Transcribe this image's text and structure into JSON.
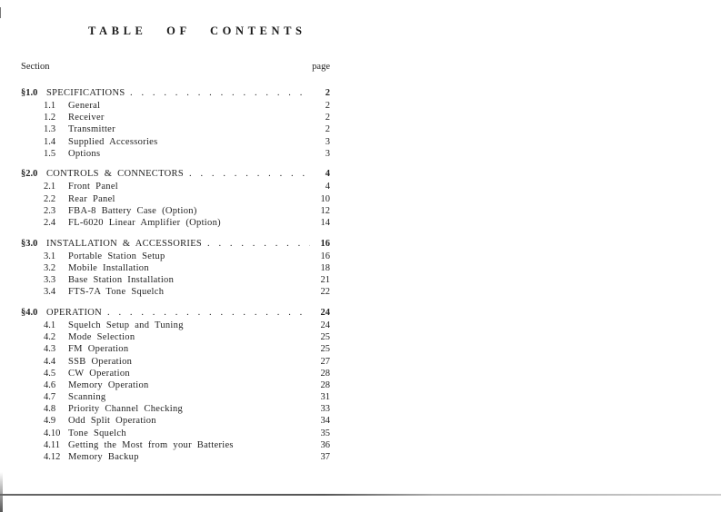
{
  "title": "TABLE OF CONTENTS",
  "header": {
    "section": "Section",
    "page": "page"
  },
  "dots": ". . . . . . . . . . . . . . . . . . . .",
  "groups": [
    {
      "num": "§1.0",
      "title": "SPECIFICATIONS",
      "dots": ". . . . . . . . . . . . . . . . . . . . .",
      "page": "2",
      "items": [
        {
          "num": "1.1",
          "title": "General",
          "page": "2"
        },
        {
          "num": "1.2",
          "title": "Receiver",
          "page": "2"
        },
        {
          "num": "1.3",
          "title": "Transmitter",
          "page": "2"
        },
        {
          "num": "1.4",
          "title": "Supplied Accessories",
          "page": "3"
        },
        {
          "num": "1.5",
          "title": "Options",
          "page": "3"
        }
      ]
    },
    {
      "num": "§2.0",
      "title": "CONTROLS & CONNECTORS",
      "dots": ". . . . . . . . . . . . . . . .",
      "page": "4",
      "items": [
        {
          "num": "2.1",
          "title": "Front Panel",
          "page": "4"
        },
        {
          "num": "2.2",
          "title": "Rear Panel",
          "page": "10"
        },
        {
          "num": "2.3",
          "title": "FBA-8 Battery Case (Option)",
          "page": "12"
        },
        {
          "num": "2.4",
          "title": "FL-6020 Linear Amplifier (Option)",
          "page": "14"
        }
      ]
    },
    {
      "num": "§3.0",
      "title": "INSTALLATION & ACCESSORIES",
      "dots": ". . . . . . . . . . . . . . .",
      "page": "16",
      "items": [
        {
          "num": "3.1",
          "title": "Portable Station Setup",
          "page": "16"
        },
        {
          "num": "3.2",
          "title": "Mobile Installation",
          "page": "18"
        },
        {
          "num": "3.3",
          "title": "Base Station Installation",
          "page": "21"
        },
        {
          "num": "3.4",
          "title": "FTS-7A Tone Squelch",
          "page": "22"
        }
      ]
    },
    {
      "num": "§4.0",
      "title": "OPERATION",
      "dots": ". . . . . . . . . . . . . . . . . . . . . . .",
      "page": "24",
      "items": [
        {
          "num": "4.1",
          "title": "Squelch Setup and Tuning",
          "page": "24"
        },
        {
          "num": "4.2",
          "title": "Mode Selection",
          "page": "25"
        },
        {
          "num": "4.3",
          "title": "FM Operation",
          "page": "25"
        },
        {
          "num": "4.4",
          "title": "SSB Operation",
          "page": "27"
        },
        {
          "num": "4.5",
          "title": "CW Operation",
          "page": "28"
        },
        {
          "num": "4.6",
          "title": "Memory Operation",
          "page": "28"
        },
        {
          "num": "4.7",
          "title": "Scanning",
          "page": "31"
        },
        {
          "num": "4.8",
          "title": "Priority Channel Checking",
          "page": "33"
        },
        {
          "num": "4.9",
          "title": "Odd Split Operation",
          "page": "34"
        },
        {
          "num": "4.10",
          "title": "Tone Squelch",
          "page": "35"
        },
        {
          "num": "4.11",
          "title": "Getting the Most from your Batteries",
          "page": "36"
        },
        {
          "num": "4.12",
          "title": "Memory Backup",
          "page": "37"
        }
      ]
    }
  ]
}
